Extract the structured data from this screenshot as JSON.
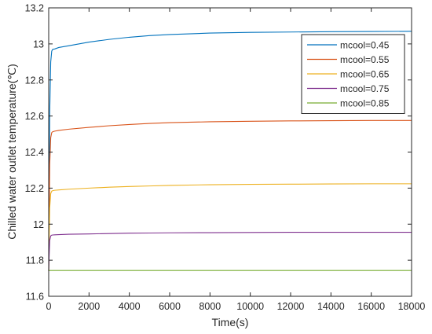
{
  "chart_data": {
    "type": "line",
    "title": "",
    "xlabel": "Time(s)",
    "ylabel": "Chilled water outlet temperature(℃)",
    "xlim": [
      0,
      18000
    ],
    "ylim": [
      11.6,
      13.2
    ],
    "xticks": [
      0,
      2000,
      4000,
      6000,
      8000,
      10000,
      12000,
      14000,
      16000,
      18000
    ],
    "yticks": [
      11.6,
      11.8,
      12.0,
      12.2,
      12.4,
      12.6,
      12.8,
      13.0,
      13.2
    ],
    "xtick_labels": [
      "0",
      "2000",
      "4000",
      "6000",
      "8000",
      "10000",
      "12000",
      "14000",
      "16000",
      "18000"
    ],
    "ytick_labels": [
      "11.6",
      "11.8",
      "12",
      "12.2",
      "12.4",
      "12.6",
      "12.8",
      "13",
      "13.2"
    ],
    "grid": false,
    "legend_position": "top-right",
    "series": [
      {
        "name": "mcool=0.45",
        "color": "#0072BD",
        "x": [
          0,
          20,
          50,
          100,
          150,
          200,
          300,
          500,
          1000,
          2000,
          3000,
          4000,
          5000,
          6000,
          8000,
          10000,
          12000,
          14000,
          16000,
          18000
        ],
        "y": [
          11.74,
          12.1,
          12.62,
          12.9,
          12.96,
          12.97,
          12.972,
          12.98,
          12.99,
          13.01,
          13.025,
          13.037,
          13.046,
          13.052,
          13.06,
          13.064,
          13.066,
          13.068,
          13.069,
          13.07
        ]
      },
      {
        "name": "mcool=0.55",
        "color": "#D95319",
        "x": [
          0,
          20,
          50,
          100,
          150,
          200,
          300,
          500,
          1000,
          2000,
          3000,
          4000,
          5000,
          6000,
          8000,
          10000,
          12000,
          14000,
          16000,
          18000
        ],
        "y": [
          11.74,
          11.98,
          12.33,
          12.48,
          12.508,
          12.513,
          12.516,
          12.52,
          12.527,
          12.537,
          12.546,
          12.553,
          12.559,
          12.563,
          12.568,
          12.571,
          12.573,
          12.574,
          12.575,
          12.575
        ]
      },
      {
        "name": "mcool=0.65",
        "color": "#EDB120",
        "x": [
          0,
          20,
          50,
          100,
          150,
          200,
          300,
          500,
          1000,
          2000,
          3000,
          4000,
          5000,
          6000,
          8000,
          10000,
          12000,
          14000,
          16000,
          18000
        ],
        "y": [
          11.74,
          11.9,
          12.09,
          12.17,
          12.183,
          12.186,
          12.188,
          12.19,
          12.194,
          12.2,
          12.205,
          12.209,
          12.212,
          12.215,
          12.219,
          12.221,
          12.222,
          12.223,
          12.224,
          12.224
        ]
      },
      {
        "name": "mcool=0.75",
        "color": "#7E2F8E",
        "x": [
          0,
          20,
          50,
          100,
          150,
          200,
          300,
          500,
          1000,
          2000,
          3000,
          4000,
          5000,
          6000,
          8000,
          10000,
          12000,
          14000,
          16000,
          18000
        ],
        "y": [
          11.74,
          11.82,
          11.91,
          11.935,
          11.939,
          11.94,
          11.941,
          11.942,
          11.944,
          11.946,
          11.948,
          11.95,
          11.951,
          11.952,
          11.953,
          11.954,
          11.955,
          11.955,
          11.955,
          11.955
        ]
      },
      {
        "name": "mcool=0.85",
        "color": "#77AC30",
        "x": [
          0,
          2000,
          4000,
          6000,
          8000,
          10000,
          12000,
          14000,
          16000,
          18000
        ],
        "y": [
          11.743,
          11.743,
          11.743,
          11.743,
          11.743,
          11.743,
          11.743,
          11.743,
          11.743,
          11.743
        ]
      }
    ]
  }
}
